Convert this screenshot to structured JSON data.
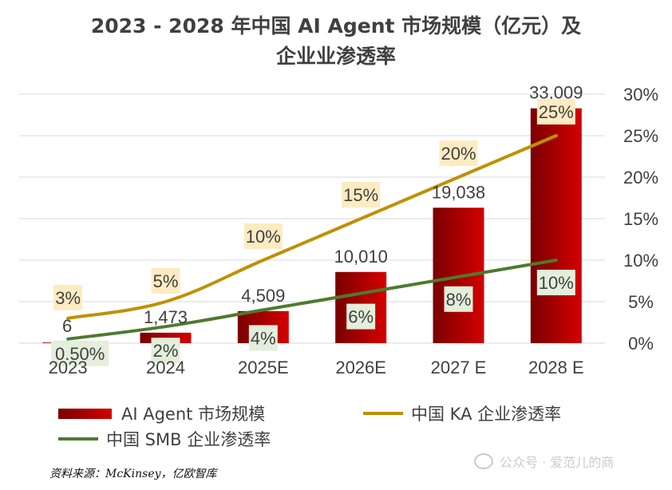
{
  "chart_data": {
    "type": "bar",
    "title_line1": "2023 - 2028 年中国 AI Agent 市场规模（亿元）及",
    "title_line2": "企业业渗透率",
    "categories": [
      "2023",
      "2024",
      "2025E",
      "2026E",
      "2027 E",
      "2028  E"
    ],
    "bar_series": {
      "name": "AI Agent 市场规模",
      "values": [
        6,
        1473,
        4509,
        10010,
        19038,
        33009
      ],
      "labels": [
        "6",
        "1,473",
        "4,509",
        "10,010",
        "19,038",
        "33,009"
      ],
      "ylim": [
        0,
        35000
      ],
      "color_dark": "#7a0000",
      "color_light": "#d40000"
    },
    "line_series": [
      {
        "name": "中国 KA 企业渗透率",
        "values": [
          3,
          5,
          10,
          15,
          20,
          25
        ],
        "labels": [
          "3%",
          "5%",
          "10%",
          "15%",
          "20%",
          "25%"
        ],
        "color": "#c09000",
        "label_bg": "#fdebc2"
      },
      {
        "name": "中国 SMB 企业渗透率",
        "values": [
          0.5,
          2,
          4,
          6,
          8,
          10
        ],
        "labels": [
          "0.50%",
          "2%",
          "4%",
          "6%",
          "8%",
          "10%"
        ],
        "color": "#4f7a2e",
        "label_bg": "#e3eedb"
      }
    ],
    "y2_ticks": [
      "0%",
      "5%",
      "10%",
      "15%",
      "20%",
      "25%",
      "30%"
    ],
    "y2_tick_values": [
      0,
      5,
      10,
      15,
      20,
      25,
      30
    ],
    "ylim_right": [
      0,
      30
    ],
    "grid": true,
    "legend_position": "bottom"
  },
  "legend": {
    "bar": "AI Agent 市场规模",
    "ka": "中国 KA 企业渗透率",
    "smb": "中国 SMB 企业渗透率"
  },
  "source_text": "资料来源：McKinsey，亿欧智库",
  "watermark_text": "公众号 · 爱范儿的商"
}
